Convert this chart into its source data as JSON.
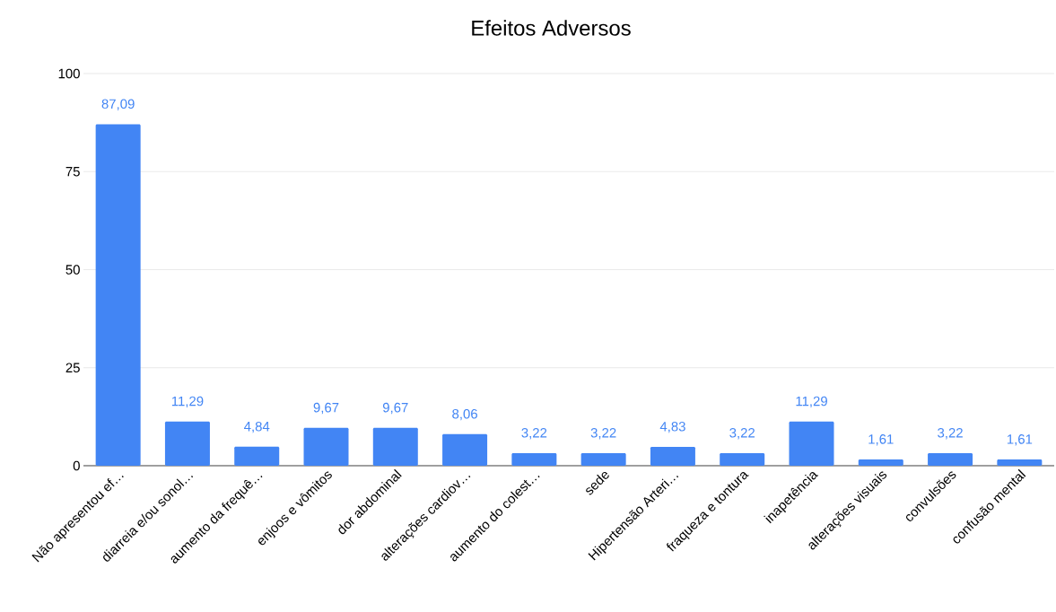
{
  "chart_data": {
    "type": "bar",
    "title": "Efeitos Adversos",
    "categories": [
      "Não apresentou ef…",
      "diarreia e/ou sonol…",
      "aumento da frequê…",
      "enjoos e vômitos",
      "dor abdominal",
      "alterações cardiov…",
      "aumento do colest…",
      "sede",
      "Hipertensão Arteri…",
      "fraqueza e tontura",
      "inapetência",
      "alterações visuais",
      "convulsões",
      "confusão mental"
    ],
    "values": [
      87.09,
      11.29,
      4.84,
      9.67,
      9.67,
      8.06,
      3.22,
      3.22,
      4.83,
      3.22,
      11.29,
      1.61,
      3.22,
      1.61
    ],
    "value_labels": [
      "87,09",
      "11,29",
      "4,84",
      "9,67",
      "9,67",
      "8,06",
      "3,22",
      "3,22",
      "4,83",
      "3,22",
      "11,29",
      "1,61",
      "3,22",
      "1,61"
    ],
    "color": "#4285f4",
    "ylim": [
      0,
      100
    ],
    "yticks": [
      0,
      25,
      50,
      75,
      100
    ],
    "grid": "y"
  }
}
